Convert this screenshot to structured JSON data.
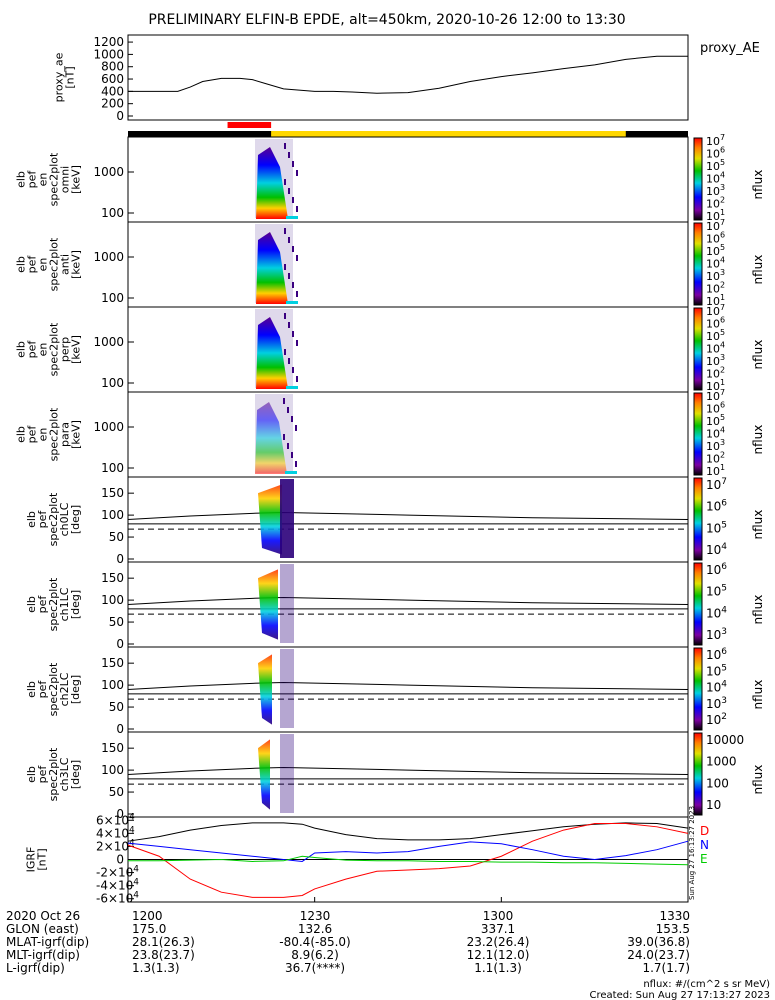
{
  "title": "PRELIMINARY ELFIN-B EPDE, alt=450km, 2020-10-26 12:00 to 13:30",
  "proxy": {
    "ylabel": "proxy_ae\n[nT]",
    "legend": "proxy_AE",
    "yticks": [
      "0",
      "200",
      "400",
      "600",
      "800",
      "1000",
      "1200"
    ],
    "chart_data": {
      "type": "line",
      "xlabel": "",
      "ylabel": "proxy_ae [nT]",
      "xlim": [
        "12:00",
        "13:30"
      ],
      "ylim": [
        0,
        1250
      ],
      "series": [
        {
          "name": "proxy_AE",
          "x": [
            "12:00",
            "12:04",
            "12:08",
            "12:10",
            "12:12",
            "12:15",
            "12:18",
            "12:20",
            "12:22",
            "12:25",
            "12:30",
            "12:33",
            "12:36",
            "12:40",
            "12:45",
            "12:50",
            "12:55",
            "13:00",
            "13:05",
            "13:10",
            "13:15",
            "13:20",
            "13:25",
            "13:30"
          ],
          "values": [
            400,
            400,
            400,
            470,
            560,
            610,
            610,
            590,
            530,
            440,
            400,
            400,
            390,
            370,
            380,
            450,
            560,
            640,
            700,
            770,
            830,
            920,
            970,
            970
          ]
        }
      ]
    }
  },
  "bars": {
    "ephemeris_colors": {
      "black": "#000000",
      "yellow": "#ffd700",
      "red": "#ff0000"
    },
    "red_span": [
      "12:16",
      "12:23"
    ],
    "yellow_span": [
      "12:23",
      "13:20"
    ]
  },
  "spec_panels": [
    {
      "ylabel": "elb\npef\nen\nspec2plot\nomni\n[keV]",
      "yticks": [
        "100",
        "1000"
      ],
      "cbar_label": "nflux",
      "cbar_ticks": [
        "10^1",
        "10^2",
        "10^3",
        "10^4",
        "10^5",
        "10^6",
        "10^7"
      ]
    },
    {
      "ylabel": "elb\npef\nen\nspec2plot\nanti\n[keV]",
      "yticks": [
        "100",
        "1000"
      ],
      "cbar_label": "nflux",
      "cbar_ticks": [
        "10^1",
        "10^2",
        "10^3",
        "10^4",
        "10^5",
        "10^6",
        "10^7"
      ]
    },
    {
      "ylabel": "elb\npef\nen\nspec2plot\nperp\n[keV]",
      "yticks": [
        "100",
        "1000"
      ],
      "cbar_label": "nflux",
      "cbar_ticks": [
        "10^1",
        "10^2",
        "10^3",
        "10^4",
        "10^5",
        "10^6",
        "10^7"
      ]
    },
    {
      "ylabel": "elb\npef\nen\nspec2plot\npara\n[keV]",
      "yticks": [
        "100",
        "1000"
      ],
      "cbar_label": "nflux",
      "cbar_ticks": [
        "10^1",
        "10^2",
        "10^3",
        "10^4",
        "10^5",
        "10^6",
        "10^7"
      ]
    }
  ],
  "pa_panels": [
    {
      "ylabel": "elb\npef\nspec2plot\nch0LC\n[deg]",
      "yticks": [
        "0",
        "50",
        "100",
        "150"
      ],
      "cbar_label": "nflux",
      "cbar_ticks": [
        "10^4",
        "10^5",
        "10^6",
        "10^7"
      ]
    },
    {
      "ylabel": "elb\npef\nspec2plot\nch1LC\n[deg]",
      "yticks": [
        "0",
        "50",
        "100",
        "150"
      ],
      "cbar_label": "nflux",
      "cbar_ticks": [
        "10^3",
        "10^4",
        "10^5",
        "10^6"
      ]
    },
    {
      "ylabel": "elb\npef\nspec2plot\nch2LC\n[deg]",
      "yticks": [
        "0",
        "50",
        "100",
        "150"
      ],
      "cbar_label": "nflux",
      "cbar_ticks": [
        "10^2",
        "10^3",
        "10^4",
        "10^5",
        "10^6"
      ]
    },
    {
      "ylabel": "elb\npef\nspec2plot\nch3LC\n[deg]",
      "yticks": [
        "0",
        "50",
        "100",
        "150"
      ],
      "cbar_label": "nflux",
      "cbar_ticks": [
        "10",
        "100",
        "1000",
        "10000"
      ]
    }
  ],
  "igrf": {
    "ylabel": "IGRF\n[nT]",
    "yticks": [
      "-6×10^4",
      "-4×10^4",
      "-2×10^4",
      "0",
      "2×10^4",
      "4×10^4",
      "6×10^4"
    ],
    "legend": [
      {
        "name": "D",
        "color": "#ff0000"
      },
      {
        "name": "N",
        "color": "#0000ff"
      },
      {
        "name": "E",
        "color": "#00cc00"
      }
    ],
    "side_stamp": "Sun Aug 27 16:13:27 2023",
    "chart_data": {
      "type": "line",
      "xlim": [
        "12:00",
        "13:30"
      ],
      "ylim": [
        -65000,
        65000
      ],
      "x": [
        "12:00",
        "12:05",
        "12:10",
        "12:15",
        "12:20",
        "12:25",
        "12:28",
        "12:30",
        "12:35",
        "12:40",
        "12:45",
        "12:50",
        "12:55",
        "13:00",
        "13:05",
        "13:10",
        "13:15",
        "13:20",
        "13:25",
        "13:30"
      ],
      "series": [
        {
          "name": "total",
          "color": "#000000",
          "values": [
            28000,
            35000,
            45000,
            52000,
            56000,
            56000,
            54000,
            48000,
            38000,
            32000,
            30000,
            30000,
            32000,
            38000,
            44000,
            50000,
            54000,
            56000,
            55000,
            48000
          ]
        },
        {
          "name": "D",
          "color": "#ff0000",
          "values": [
            22000,
            5000,
            -30000,
            -50000,
            -58000,
            -58000,
            -55000,
            -45000,
            -30000,
            -18000,
            -16000,
            -14000,
            -10000,
            5000,
            28000,
            45000,
            55000,
            55000,
            50000,
            40000
          ]
        },
        {
          "name": "N",
          "color": "#0000ff",
          "values": [
            25000,
            20000,
            15000,
            10000,
            5000,
            0,
            -3000,
            10000,
            12000,
            10000,
            12000,
            20000,
            27000,
            24000,
            15000,
            5000,
            0,
            6000,
            15000,
            28000
          ]
        },
        {
          "name": "E",
          "color": "#00cc00",
          "values": [
            -2000,
            -2000,
            -1000,
            0,
            -3000,
            -2000,
            5000,
            3000,
            -1000,
            -2000,
            -2000,
            -3000,
            -3000,
            -4000,
            -4000,
            -5000,
            -5000,
            -6000,
            -7000,
            -8000
          ]
        }
      ]
    }
  },
  "footer": {
    "rows": [
      {
        "label": "2020 Oct 26",
        "v": [
          "1200",
          "1230",
          "1300",
          "1330"
        ]
      },
      {
        "label": "GLON (east)",
        "v": [
          "175.0",
          "132.6",
          "337.1",
          "153.5"
        ]
      },
      {
        "label": "MLAT-igrf(dip)",
        "v": [
          "28.1(26.3)",
          "-80.4(-85.0)",
          "23.2(26.4)",
          "39.0(36.8)"
        ]
      },
      {
        "label": "MLT-igrf(dip)",
        "v": [
          "23.8(23.7)",
          "8.9(6.2)",
          "12.1(12.0)",
          "24.0(23.7)"
        ]
      },
      {
        "label": "L-igrf(dip)",
        "v": [
          "1.3(1.3)",
          "36.7(****)",
          "1.1(1.3)",
          "1.7(1.7)"
        ]
      }
    ],
    "units": "nflux: #/(cm^2 s sr MeV)",
    "created": "Created: Sun Aug 27 17:13:27 2023"
  }
}
